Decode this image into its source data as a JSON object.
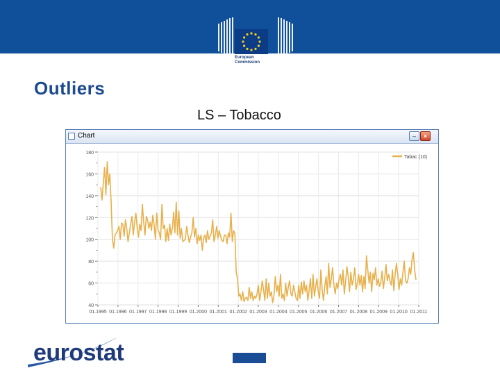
{
  "header": {
    "ec_logo_line1": "European",
    "ec_logo_line2": "Commission"
  },
  "slide": {
    "title": "Outliers",
    "chart_heading": "LS – Tobacco"
  },
  "window": {
    "title": "Chart",
    "min_glyph": "–",
    "close_glyph": "×"
  },
  "footer": {
    "eurostat_logo": "eurostat"
  },
  "colors": {
    "banner": "#10509a",
    "title": "#1c4a8f",
    "series": "#e8b04a"
  },
  "chart_data": {
    "type": "line",
    "title": "",
    "legend_position": "top-right",
    "grid": true,
    "ylim": [
      40,
      180
    ],
    "y_ticks": [
      "180",
      "160",
      "140",
      "120",
      "100",
      "80",
      "60",
      "40"
    ],
    "x_ticks": [
      "01.1995",
      "01.1996",
      "01.1997",
      "01.1998",
      "01.1999",
      "01.2000",
      "01.2001",
      "01.2002",
      "01.2003",
      "01.2004",
      "01.2005",
      "01.2006",
      "01.2007",
      "01.2008",
      "01.2009",
      "01.2010",
      "01.2011"
    ],
    "series": [
      {
        "name": "Tabac (10)",
        "values": [
          148,
          136,
          152,
          166,
          141,
          171,
          150,
          160,
          135,
          100,
          92,
          104,
          106,
          108,
          112,
          100,
          115,
          114,
          103,
          118,
          110,
          98,
          106,
          114,
          121,
          104,
          116,
          124,
          111,
          102,
          114,
          108,
          132,
          116,
          104,
          121,
          118,
          110,
          116,
          108,
          122,
          114,
          100,
          124,
          109,
          106,
          100,
          132,
          110,
          113,
          98,
          110,
          99,
          114,
          104,
          110,
          125,
          106,
          134,
          104,
          126,
          101,
          110,
          98,
          99,
          100,
          112,
          104,
          97,
          102,
          106,
          120,
          102,
          110,
          96,
          104,
          99,
          104,
          90,
          101,
          104,
          97,
          108,
          100,
          103,
          106,
          118,
          98,
          104,
          112,
          101,
          108,
          103,
          99,
          98,
          104,
          104,
          96,
          106,
          102,
          124,
          98,
          108,
          106,
          70,
          64,
          48,
          50,
          44,
          52,
          43,
          46,
          47,
          44,
          56,
          46,
          52,
          44,
          48,
          46,
          50,
          58,
          44,
          52,
          62,
          54,
          44,
          64,
          46,
          60,
          48,
          52,
          42,
          48,
          66,
          52,
          58,
          48,
          68,
          46,
          50,
          44,
          60,
          48,
          56,
          62,
          50,
          48,
          58,
          52,
          46,
          44,
          58,
          46,
          61,
          50,
          62,
          52,
          58,
          44,
          54,
          64,
          46,
          68,
          48,
          56,
          64,
          52,
          46,
          72,
          54,
          44,
          57,
          66,
          50,
          78,
          56,
          64,
          74,
          58,
          50,
          60,
          55,
          64,
          68,
          58,
          72,
          50,
          62,
          75,
          66,
          52,
          70,
          58,
          64,
          74,
          54,
          60,
          68,
          58,
          67,
          52,
          66,
          55,
          85,
          72,
          60,
          70,
          52,
          69,
          63,
          74,
          58,
          64,
          57,
          60,
          71,
          55,
          65,
          77,
          62,
          68,
          62,
          58,
          72,
          53,
          68,
          78,
          68,
          54,
          64,
          58,
          70,
          80,
          62,
          60,
          64,
          74,
          68,
          82,
          88,
          72,
          63
        ]
      }
    ]
  }
}
